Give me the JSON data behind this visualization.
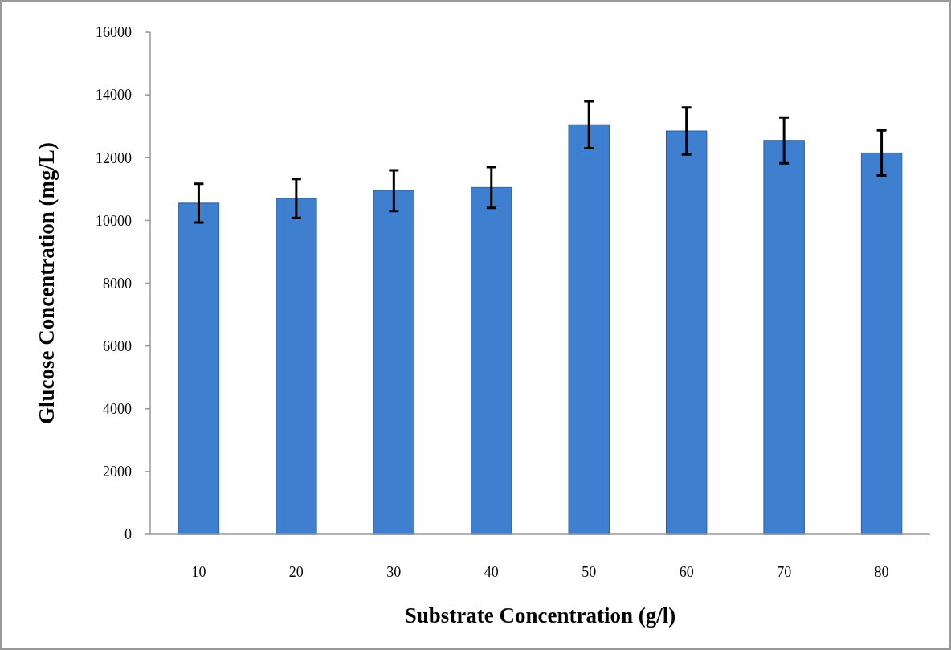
{
  "chart_data": {
    "type": "bar",
    "xlabel": "Substrate Concentration (g/l)",
    "ylabel": "Glucose Concentration (mg/L)",
    "categories": [
      "10",
      "20",
      "30",
      "40",
      "50",
      "60",
      "70",
      "80"
    ],
    "values": [
      10550,
      10700,
      10950,
      11050,
      13050,
      12850,
      12550,
      12150
    ],
    "errors": [
      620,
      620,
      650,
      650,
      750,
      750,
      730,
      720
    ],
    "color": "#3f7fd0",
    "ylim": [
      0,
      16000
    ],
    "yticks": [
      0,
      2000,
      4000,
      6000,
      8000,
      10000,
      12000,
      14000,
      16000
    ]
  }
}
